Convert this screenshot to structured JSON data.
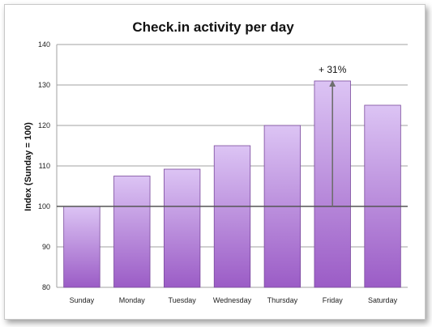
{
  "chart_data": {
    "type": "bar",
    "title": "Check.in activity per day",
    "xlabel": "",
    "ylabel": "Index (Sunday = 100)",
    "categories": [
      "Sunday",
      "Monday",
      "Tuesday",
      "Wednesday",
      "Thursday",
      "Friday",
      "Saturday"
    ],
    "values": [
      100,
      107.5,
      109.2,
      115,
      120,
      131,
      125
    ],
    "ylim": [
      80,
      140
    ],
    "yticks": [
      "80",
      "90",
      "100",
      "110",
      "120",
      "130",
      "140"
    ],
    "baseline": 100,
    "grid": true,
    "legend": "none",
    "annotation": {
      "text": "+ 31%",
      "category": "Friday",
      "from": 100,
      "to": 131
    },
    "colors": {
      "bar_top": "#dcc4f4",
      "bar_bottom": "#9b5cc6",
      "bar_stroke": "#7a4a9c",
      "grid": "#a0a0a0",
      "baseline": "#555555",
      "arrow": "#6e6e6e"
    }
  }
}
